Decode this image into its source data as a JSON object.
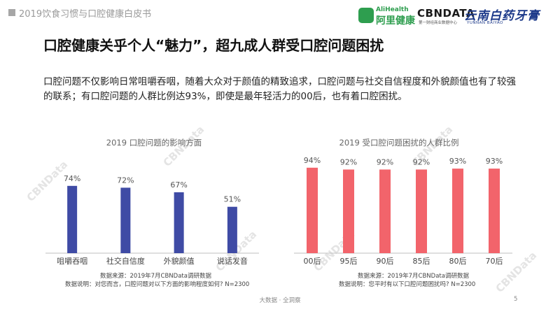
{
  "header": {
    "doc_title": "2019饮食习惯与口腔健康白皮书"
  },
  "logos": {
    "alihealth_en": "AliHealth",
    "alihealth_cn": "阿里健康",
    "cbndata": "CBNDATA",
    "cbndata_sub": "第一财经商业数据中心",
    "yunnan": "云南白药牙膏",
    "yunnan_en": "YUNNAN BAIYAO"
  },
  "title": "口腔健康关乎个人“魅力”，超九成人群受口腔问题困扰",
  "paragraph": "口腔问题不仅影响日常咀嚼吞咽，随着大众对于颜值的精致追求，口腔问题与社交自信程度和外貌颜值也有了较强的联系；有口腔问题的人群比例达93%，即使是最年轻活力的00后，也有着口腔困扰。",
  "watermark": "CBNData",
  "chart_data": [
    {
      "type": "bar",
      "title": "2019 口腔问题的影响方面",
      "categories": [
        "咀嚼吞咽",
        "社交自信度",
        "外貌颜值",
        "说话发音"
      ],
      "values": [
        74,
        72,
        67,
        51
      ],
      "value_labels": [
        "74%",
        "72%",
        "67%",
        "51%"
      ],
      "ylim": [
        0,
        100
      ],
      "color": "#3f4ba5",
      "note_source": "数据来源：2019年7月CBNData调研数据",
      "note_desc": "数据说明：对您而言，口腔问题对以下方面的影响程度如何? N=2300"
    },
    {
      "type": "bar",
      "title": "2019 受口腔问题困扰的人群比例",
      "categories": [
        "00后",
        "95后",
        "90后",
        "85后",
        "80后",
        "70后"
      ],
      "values": [
        94,
        92,
        92,
        92,
        93,
        93
      ],
      "value_labels": [
        "94%",
        "92%",
        "92%",
        "92%",
        "93%",
        "93%"
      ],
      "ylim": [
        0,
        100
      ],
      "color": "#f2646b",
      "note_source": "数据来源：2019年7月CBNData调研数据",
      "note_desc": "数据说明：您平时有以下口腔问题困扰吗? N=2300"
    }
  ],
  "footer": {
    "text": "大数据 · 全洞察",
    "page": "5"
  }
}
